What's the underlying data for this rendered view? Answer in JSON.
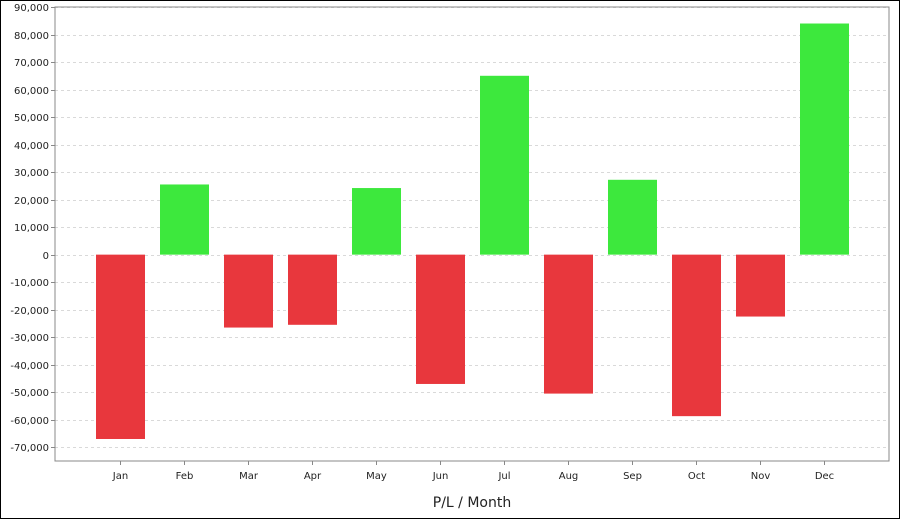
{
  "chart_data": {
    "type": "bar",
    "title": "",
    "xlabel": "P/L / Month",
    "ylabel": "",
    "categories": [
      "Jan",
      "Feb",
      "Mar",
      "Apr",
      "May",
      "Jun",
      "Jul",
      "Aug",
      "Sep",
      "Oct",
      "Nov",
      "Dec"
    ],
    "values": [
      -67000,
      25500,
      -26500,
      -25500,
      24200,
      -47000,
      65000,
      -50500,
      27200,
      -58700,
      -22500,
      84000
    ],
    "ylim": [
      -75000,
      90000
    ],
    "yticks": [
      -70000,
      -60000,
      -50000,
      -40000,
      -30000,
      -20000,
      -10000,
      0,
      10000,
      20000,
      30000,
      40000,
      50000,
      60000,
      70000,
      80000,
      90000
    ],
    "ytick_labels": [
      "-70,000",
      "-60,000",
      "-50,000",
      "-40,000",
      "-30,000",
      "-20,000",
      "-10,000",
      "0",
      "10,000",
      "20,000",
      "30,000",
      "40,000",
      "50,000",
      "60,000",
      "70,000",
      "80,000",
      "90,000"
    ],
    "grid": true,
    "legend": "none",
    "colors": {
      "positive": "#3de83d",
      "negative": "#e8373d",
      "grid": "#d9d9d9",
      "axis": "#888888"
    }
  }
}
